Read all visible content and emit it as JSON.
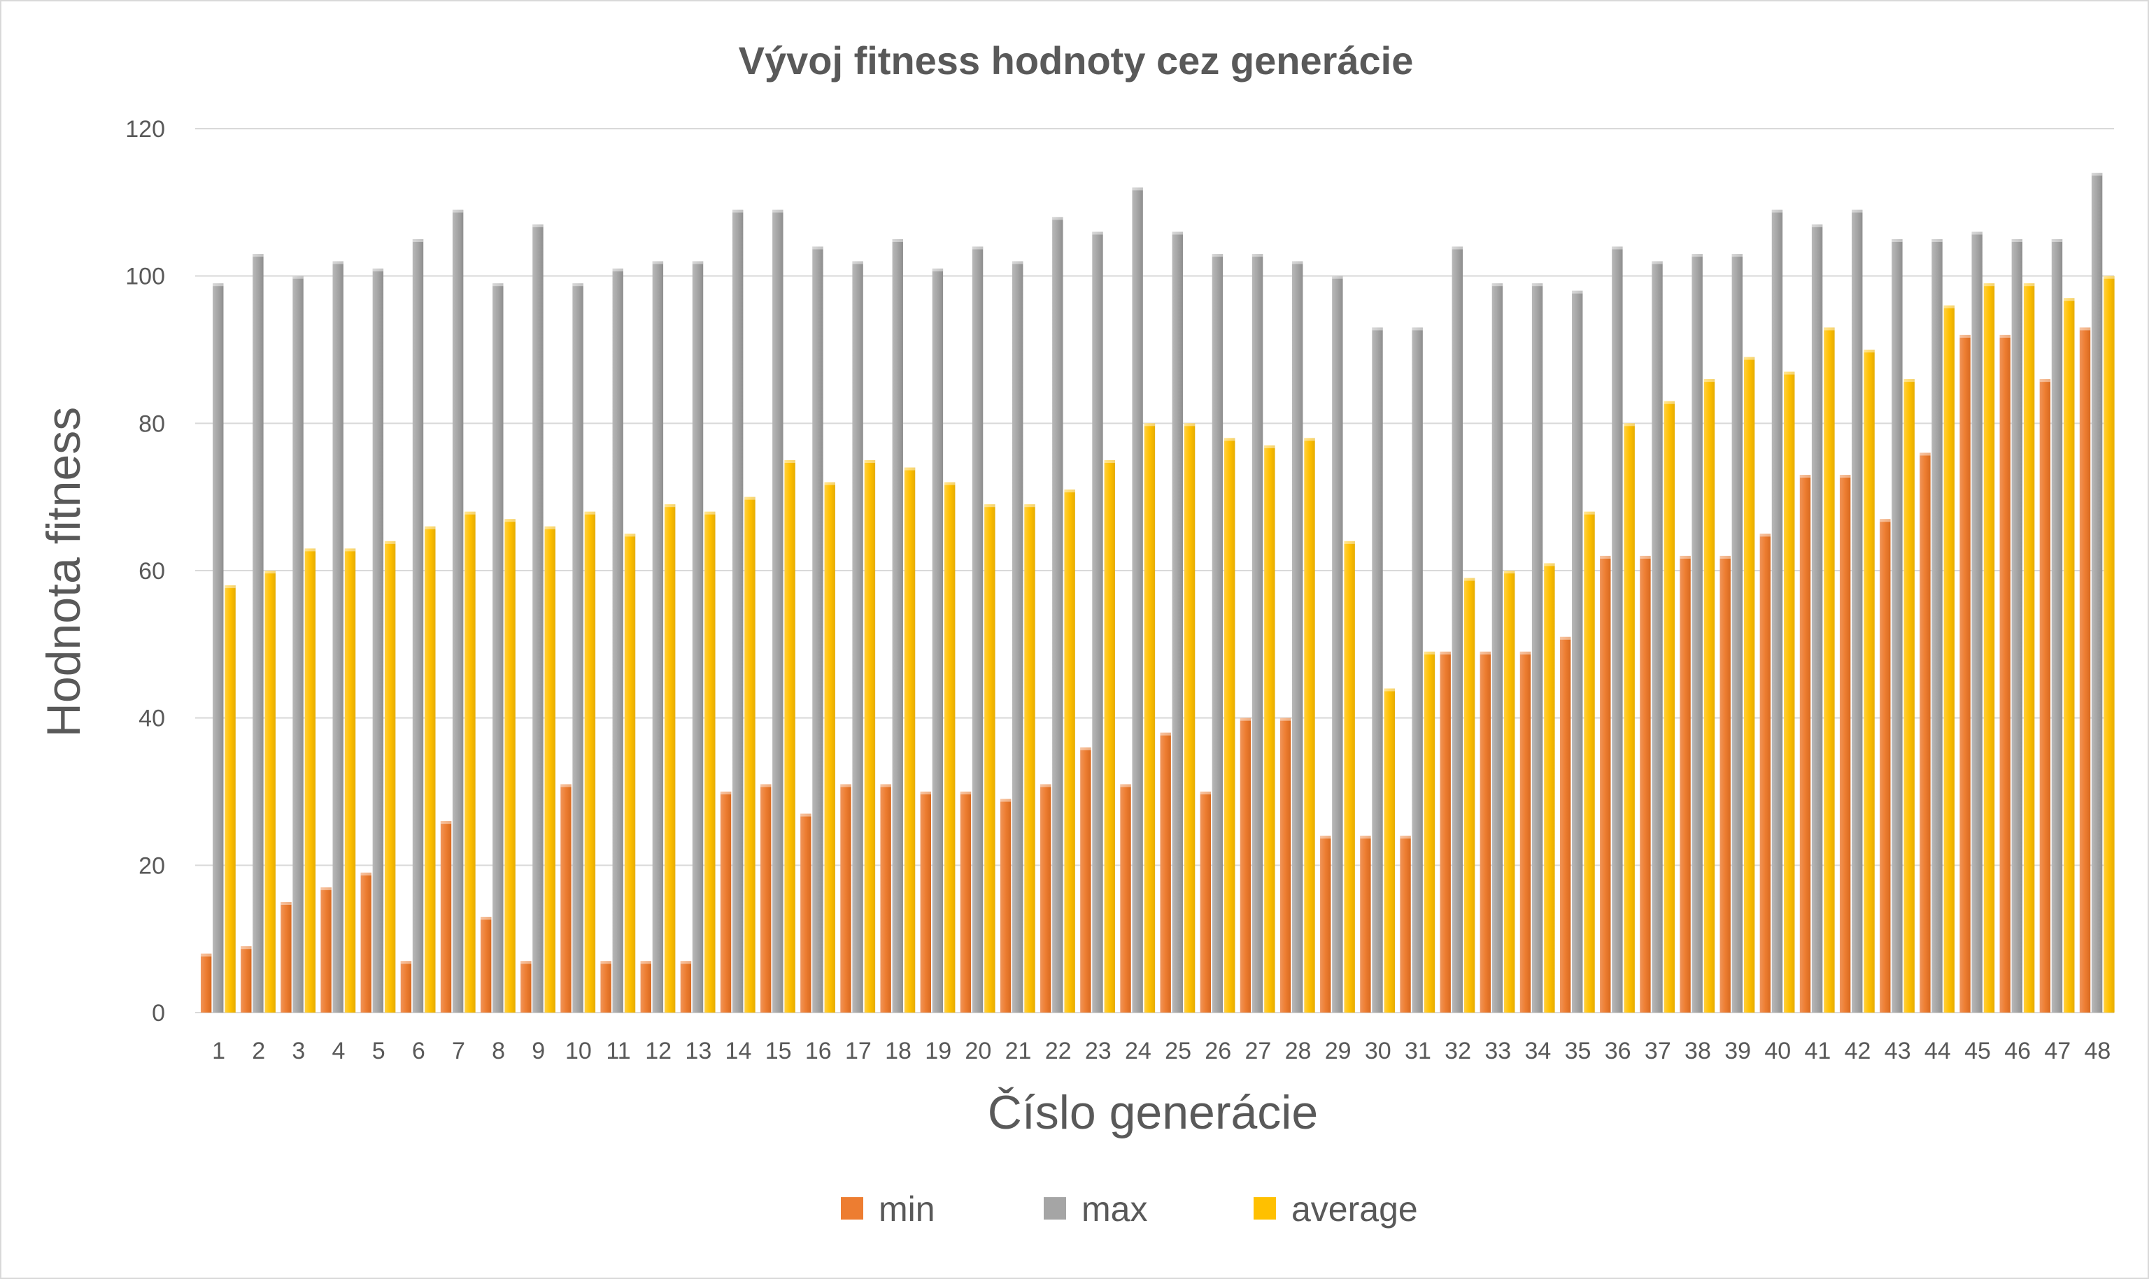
{
  "chart_data": {
    "type": "bar",
    "title": "Vývoj fitness hodnoty cez generácie",
    "xlabel": "Číslo generácie",
    "ylabel": "Hodnota fitness",
    "ylim": [
      0,
      120
    ],
    "yticks": [
      0,
      20,
      40,
      60,
      80,
      100,
      120
    ],
    "grid": true,
    "legend_position": "bottom",
    "categories": [
      "1",
      "2",
      "3",
      "4",
      "5",
      "6",
      "7",
      "8",
      "9",
      "10",
      "11",
      "12",
      "13",
      "14",
      "15",
      "16",
      "17",
      "18",
      "19",
      "20",
      "21",
      "22",
      "23",
      "24",
      "25",
      "26",
      "27",
      "28",
      "29",
      "30",
      "31",
      "32",
      "33",
      "34",
      "35",
      "36",
      "37",
      "38",
      "39",
      "40",
      "41",
      "42",
      "43",
      "44",
      "45",
      "46",
      "47",
      "48"
    ],
    "series": [
      {
        "name": "min",
        "color": "#ed7d31",
        "values": [
          8,
          9,
          15,
          17,
          19,
          7,
          26,
          13,
          7,
          31,
          7,
          7,
          7,
          30,
          31,
          27,
          31,
          31,
          30,
          30,
          29,
          31,
          36,
          31,
          38,
          30,
          40,
          40,
          24,
          24,
          24,
          49,
          49,
          49,
          51,
          62,
          62,
          62,
          62,
          65,
          73,
          73,
          67,
          76,
          92,
          92,
          86,
          93
        ]
      },
      {
        "name": "max",
        "color": "#a5a5a5",
        "values": [
          99,
          103,
          100,
          102,
          101,
          105,
          109,
          99,
          107,
          99,
          101,
          102,
          102,
          109,
          109,
          104,
          102,
          105,
          101,
          104,
          102,
          108,
          106,
          112,
          106,
          103,
          103,
          102,
          100,
          93,
          93,
          104,
          99,
          99,
          98,
          104,
          102,
          103,
          103,
          109,
          107,
          109,
          105,
          105,
          106,
          105,
          105,
          114
        ]
      },
      {
        "name": "average",
        "color": "#ffc000",
        "values": [
          58,
          60,
          63,
          63,
          64,
          66,
          68,
          67,
          66,
          68,
          65,
          69,
          68,
          70,
          75,
          72,
          75,
          74,
          72,
          69,
          69,
          71,
          75,
          80,
          80,
          78,
          77,
          78,
          64,
          44,
          49,
          59,
          60,
          61,
          68,
          80,
          83,
          86,
          89,
          87,
          93,
          90,
          86,
          96,
          99,
          99,
          97,
          100
        ]
      }
    ]
  }
}
